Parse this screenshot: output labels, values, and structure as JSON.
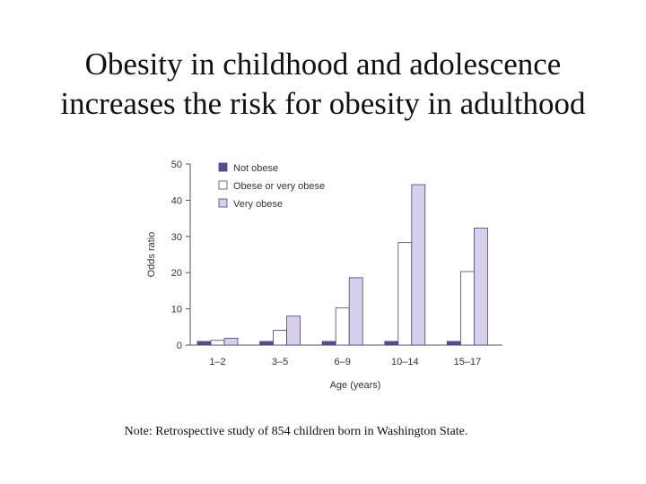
{
  "slide": {
    "title_line1": "Obesity in childhood and adolescence",
    "title_line2": "increases the risk for obesity in adulthood",
    "note": "Note: Retrospective study of 854 children born in Washington State."
  },
  "colors": {
    "not_obese": "#5b4a8f",
    "obese_or_very_obese": "#ffffff",
    "very_obese": "#d6d0ea",
    "bar_stroke": "#4a3f78",
    "axis": "#555555"
  },
  "chart_data": {
    "type": "bar",
    "xlabel": "Age (years)",
    "ylabel": "Odds ratio",
    "ylim": [
      0,
      50
    ],
    "yticks": [
      0,
      10,
      20,
      30,
      40,
      50
    ],
    "grid": false,
    "legend_position": "top-left",
    "categories": [
      "1–2",
      "3–5",
      "6–9",
      "10–14",
      "15–17"
    ],
    "series": [
      {
        "name": "Not obese",
        "values": [
          1,
          1,
          1,
          1,
          1
        ]
      },
      {
        "name": "Obese or very obese",
        "values": [
          1.3,
          4.1,
          10.3,
          28.3,
          20.3
        ]
      },
      {
        "name": "Very obese",
        "values": [
          1.9,
          8.0,
          18.6,
          44.3,
          32.3
        ]
      }
    ]
  }
}
